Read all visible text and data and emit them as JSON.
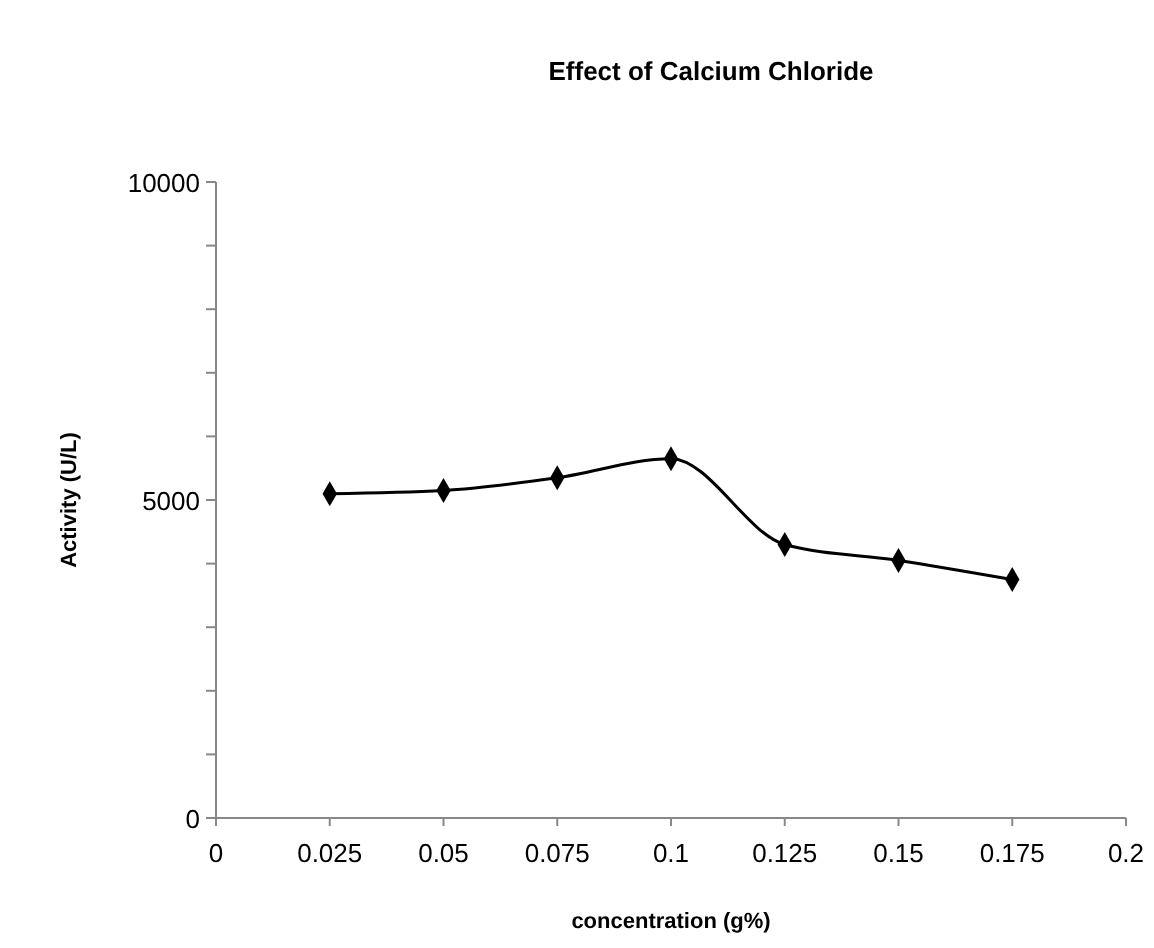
{
  "chart_data": {
    "type": "line",
    "title": "Effect of Calcium Chloride",
    "xlabel": "concentration (g%)",
    "ylabel": "Activity (U/L)",
    "x": [
      0.025,
      0.05,
      0.075,
      0.1,
      0.125,
      0.15,
      0.175
    ],
    "series": [
      {
        "color": "#000000",
        "values": [
          5100,
          5150,
          5350,
          5650,
          4300,
          4050,
          3750
        ]
      }
    ],
    "xlim": [
      0,
      0.2
    ],
    "xticks": [
      0,
      0.025,
      0.05,
      0.075,
      0.1,
      0.125,
      0.15,
      0.175,
      0.2
    ],
    "ylim": [
      0,
      10000
    ],
    "yticks": [
      0,
      {
        "value": 1000,
        "label": null
      },
      {
        "value": 2000,
        "label": null
      },
      {
        "value": 3000,
        "label": null
      },
      {
        "value": 4000,
        "label": null
      },
      5000,
      {
        "value": 6000,
        "label": null
      },
      {
        "value": 7000,
        "label": null
      },
      {
        "value": 8000,
        "label": null
      },
      {
        "value": 9000,
        "label": null
      },
      10000
    ],
    "grid": false,
    "marker": "diamond",
    "line_style": "solid"
  }
}
